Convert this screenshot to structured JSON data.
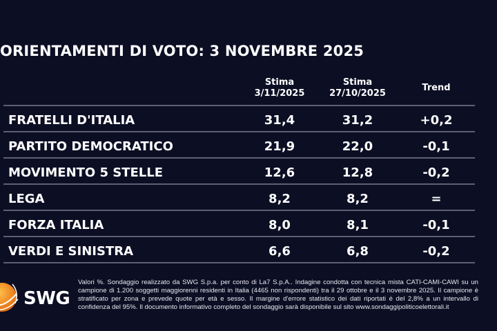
{
  "title": "ORIENTAMENTI DI VOTO: 3 NOVEMBRE 2025",
  "columns": [
    {
      "line1": "Stima",
      "line2": "3/11/2025"
    },
    {
      "line1": "Stima",
      "line2": "27/10/2025"
    },
    {
      "line1": "Trend",
      "line2": ""
    }
  ],
  "rows": [
    {
      "party": "FRATELLI D'ITALIA",
      "current": "31,4",
      "previous": "31,2",
      "trend": "+0,2"
    },
    {
      "party": "PARTITO DEMOCRATICO",
      "current": "21,9",
      "previous": "22,0",
      "trend": "-0,1"
    },
    {
      "party": "MOVIMENTO 5 STELLE",
      "current": "12,6",
      "previous": "12,8",
      "trend": "-0,2"
    },
    {
      "party": "LEGA",
      "current": "8,2",
      "previous": "8,2",
      "trend": "="
    },
    {
      "party": "FORZA ITALIA",
      "current": "8,0",
      "previous": "8,1",
      "trend": "-0,1"
    },
    {
      "party": "VERDI E SINISTRA",
      "current": "6,6",
      "previous": "6,8",
      "trend": "-0,2"
    }
  ],
  "logo": {
    "text": "SWG",
    "color": "#f39a1e"
  },
  "footnote": "Valori %. Sondaggio realizzato da SWG S.p.a. per conto di La7 S.p.A.. Indagine condotta con tecnica mista CATI-CAMI-CAWI su un campione di 1.200 soggetti maggiorenni residenti in Italia (4465 non rispondenti) tra il 29 ottobre e il 3 novembre 2025. Il campione è stratificato per zona e prevede quote per età e sesso. Il margine d’errore statistico dei dati riportati è del 2,8% a un intervallo di confidenza del 95%. Il documento informativo completo del sondaggio sarà disponibile sul sito www.sondaggipoliticoelettorali.it"
}
